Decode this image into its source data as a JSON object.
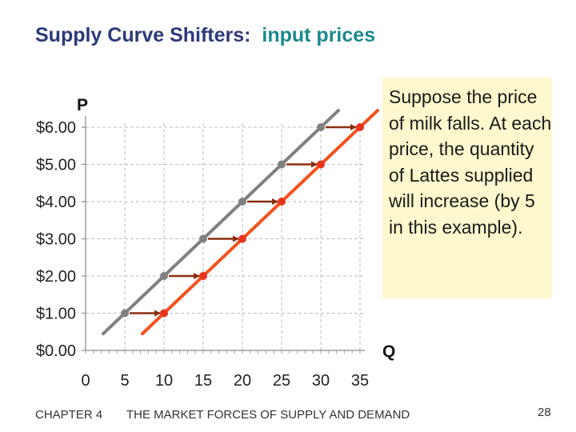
{
  "slide": {
    "title_part1": "Supply Curve Shifters:",
    "title_part2": "input prices",
    "note": "Suppose the price of milk falls. At each price, the quantity of Lattes supplied will increase (by 5 in this example).",
    "footer_chapter": "CHAPTER 4",
    "footer_subject": "THE MARKET FORCES OF SUPPLY AND DEMAND",
    "page_number": "28"
  },
  "chart_data": {
    "type": "line",
    "xlabel": "Q",
    "ylabel": "P",
    "xlim": [
      0,
      35
    ],
    "ylim": [
      0,
      6
    ],
    "x_ticks": [
      "0",
      "5",
      "10",
      "15",
      "20",
      "25",
      "30",
      "35"
    ],
    "y_ticks": [
      "$0.00",
      "$1.00",
      "$2.00",
      "$3.00",
      "$4.00",
      "$5.00",
      "$6.00"
    ],
    "grid": "dashed",
    "series": [
      {
        "color": "#808080",
        "points": [
          [
            5,
            1
          ],
          [
            10,
            2
          ],
          [
            15,
            3
          ],
          [
            20,
            4
          ],
          [
            25,
            5
          ],
          [
            30,
            6
          ]
        ]
      },
      {
        "color": "#f4511e",
        "points": [
          [
            10,
            1
          ],
          [
            15,
            2
          ],
          [
            20,
            3
          ],
          [
            25,
            4
          ],
          [
            30,
            5
          ],
          [
            35,
            6
          ]
        ]
      }
    ],
    "shift_arrows": {
      "amount": 5,
      "color": "#8b2e0f"
    },
    "colors": {
      "old_supply_line": "#808080",
      "new_supply_line": "#f4511e",
      "new_supply_points": "#e8341c"
    }
  }
}
